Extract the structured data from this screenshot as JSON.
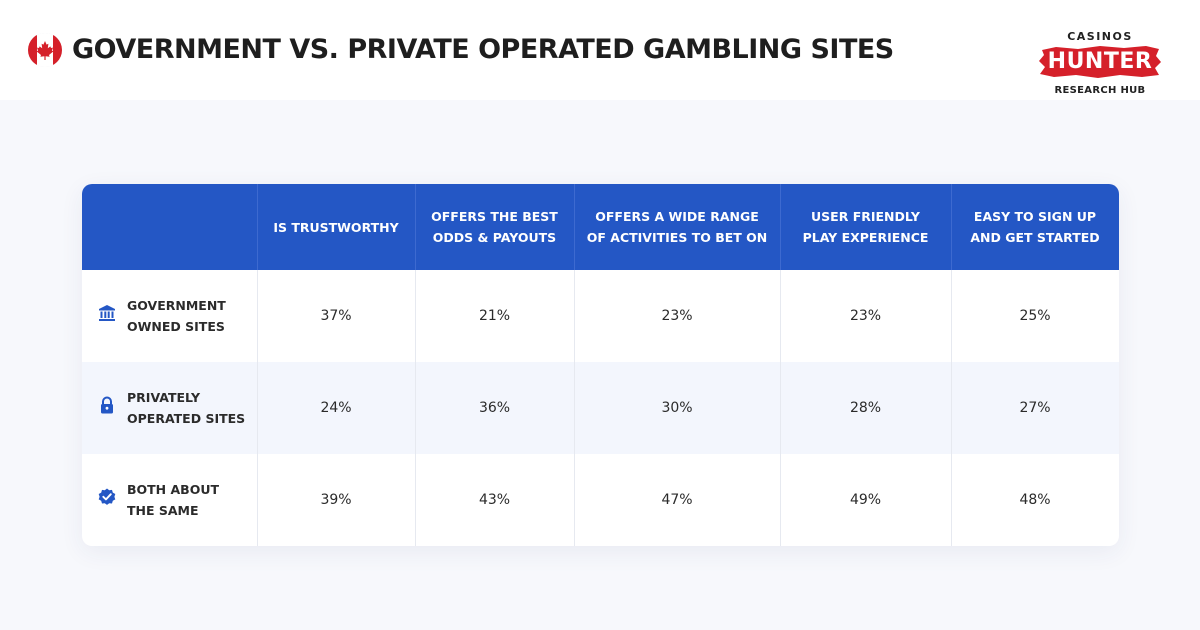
{
  "header": {
    "title": "GOVERNMENT VS. PRIVATE OPERATED GAMBLING SITES",
    "flag_icon": "canada-maple-leaf-icon"
  },
  "logo": {
    "top": "CASINOS",
    "main": "HUNTER",
    "bottom": "RESEARCH HUB"
  },
  "colors": {
    "header_blue": "#2457c5",
    "accent_red": "#d5202a",
    "alt_row": "#f3f6fd"
  },
  "chart_data": {
    "type": "table",
    "columns": [
      "IS TRUSTWORTHY",
      "OFFERS THE BEST\nODDS & PAYOUTS",
      "OFFERS A WIDE RANGE\nOF ACTIVITIES TO BET ON",
      "USER FRIENDLY\nPLAY EXPERIENCE",
      "EASY TO SIGN UP\nAND GET STARTED"
    ],
    "rows": [
      {
        "label": "GOVERNMENT\nOWNED SITES",
        "icon": "bank-building-icon",
        "values": [
          "37%",
          "21%",
          "23%",
          "23%",
          "25%"
        ]
      },
      {
        "label": "PRIVATELY\nOPERATED SITES",
        "icon": "lock-icon",
        "values": [
          "24%",
          "36%",
          "30%",
          "28%",
          "27%"
        ]
      },
      {
        "label": "BOTH ABOUT\nTHE SAME",
        "icon": "verified-badge-icon",
        "values": [
          "39%",
          "43%",
          "47%",
          "49%",
          "48%"
        ]
      }
    ]
  }
}
